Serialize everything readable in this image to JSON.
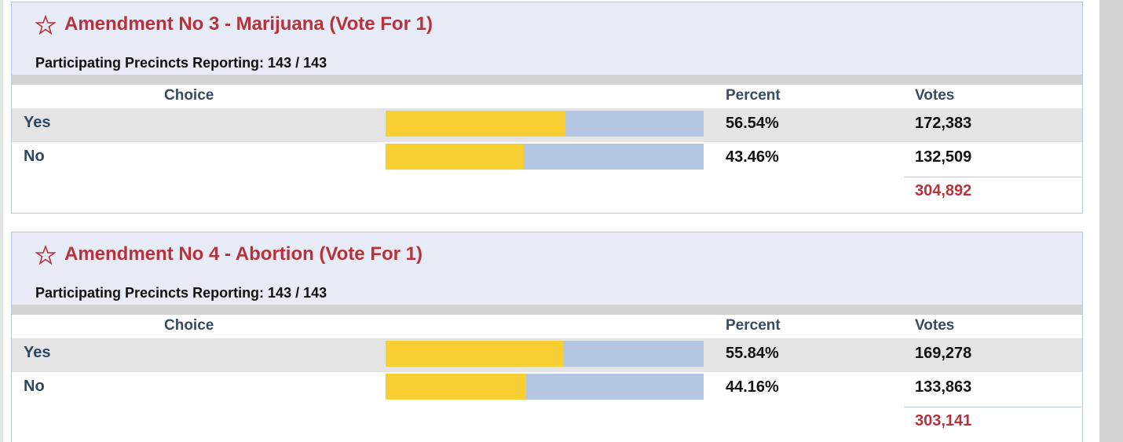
{
  "contests": [
    {
      "title": "Amendment No 3 - Marijuana (Vote For 1)",
      "reporting": "Participating Precincts Reporting: 143 / 143",
      "columns": [
        "Choice",
        "Percent",
        "Votes"
      ],
      "rows": [
        {
          "choice": "Yes",
          "percent": {
            "value": 56.54,
            "label": "56.54%"
          },
          "votes": "172,383"
        },
        {
          "choice": "No",
          "percent": {
            "value": 43.46,
            "label": "43.46%"
          },
          "votes": "132,509"
        }
      ],
      "total": "304,892"
    },
    {
      "title": "Amendment No 4 - Abortion (Vote For 1)",
      "reporting": "Participating Precincts Reporting: 143 / 143",
      "columns": [
        "Choice",
        "Percent",
        "Votes"
      ],
      "rows": [
        {
          "choice": "Yes",
          "percent": {
            "value": 55.84,
            "label": "55.84%"
          },
          "votes": "169,278"
        },
        {
          "choice": "No",
          "percent": {
            "value": 44.16,
            "label": "44.16%"
          },
          "votes": "133,863"
        }
      ],
      "total": "303,141"
    }
  ]
}
